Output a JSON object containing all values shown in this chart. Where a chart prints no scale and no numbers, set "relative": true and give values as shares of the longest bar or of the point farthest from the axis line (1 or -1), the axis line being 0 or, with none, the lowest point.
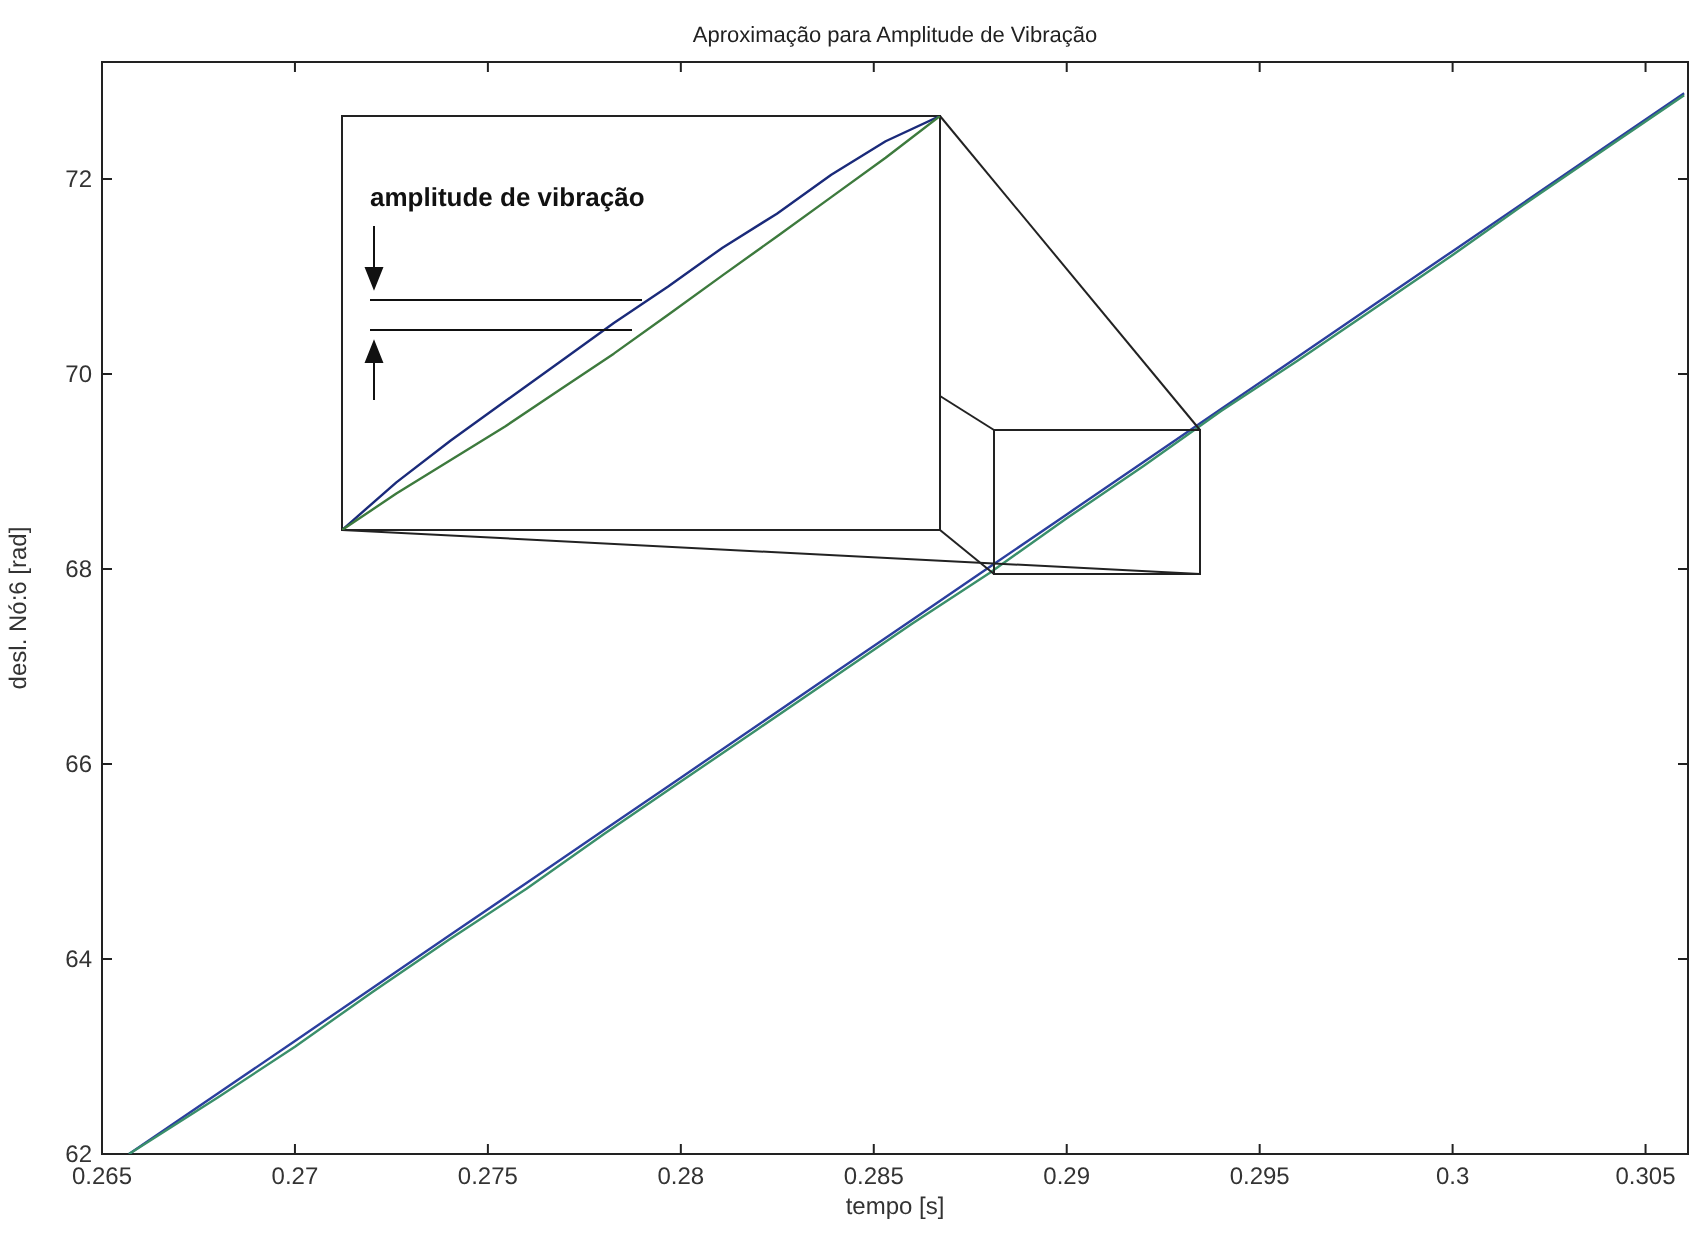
{
  "chart_data": [
    {
      "type": "line",
      "title": "Aproximação para Amplitude de Vibração",
      "xlabel": "tempo [s]",
      "ylabel": "desl. Nó:6 [rad]",
      "xlim": [
        0.265,
        0.3061
      ],
      "ylim": [
        62,
        73.2
      ],
      "xticks": [
        0.265,
        0.27,
        0.275,
        0.28,
        0.285,
        0.29,
        0.295,
        0.3,
        0.305
      ],
      "yticks": [
        62,
        64,
        66,
        68,
        70,
        72
      ],
      "x": [
        0.2657,
        0.268,
        0.27,
        0.272,
        0.274,
        0.276,
        0.278,
        0.28,
        0.282,
        0.284,
        0.286,
        0.288,
        0.29,
        0.292,
        0.294,
        0.296,
        0.298,
        0.3,
        0.302,
        0.304,
        0.306
      ],
      "series": [
        {
          "color": "#2b3f9e",
          "values": [
            62,
            62.62,
            63.16,
            63.7,
            64.24,
            64.78,
            65.32,
            65.86,
            66.4,
            66.94,
            67.48,
            68.02,
            68.56,
            69.1,
            69.64,
            70.18,
            70.72,
            71.26,
            71.8,
            72.34,
            72.88
          ]
        },
        {
          "color": "#3a8f6a",
          "values": [
            62,
            62.58,
            63.1,
            63.66,
            64.2,
            64.72,
            65.28,
            65.82,
            66.36,
            66.9,
            67.44,
            67.96,
            68.52,
            69.06,
            69.62,
            70.14,
            70.68,
            71.22,
            71.78,
            72.32,
            72.86
          ]
        }
      ]
    },
    {
      "type": "line",
      "relative": true,
      "annotations": [
        "amplitude de vibração"
      ],
      "categories": [
        null,
        null,
        null,
        null,
        null,
        null,
        null,
        null,
        null,
        null,
        null,
        null
      ],
      "series": [
        {
          "color": "#1a2a7a",
          "values": [
            0,
            0.115,
            0.216,
            0.311,
            0.405,
            0.5,
            0.588,
            0.682,
            0.764,
            0.858,
            0.939,
            1
          ]
        },
        {
          "color": "#3d7a3d",
          "values": [
            0,
            0.088,
            0.169,
            0.25,
            0.338,
            0.426,
            0.52,
            0.615,
            0.709,
            0.804,
            0.899,
            1
          ]
        }
      ]
    }
  ]
}
